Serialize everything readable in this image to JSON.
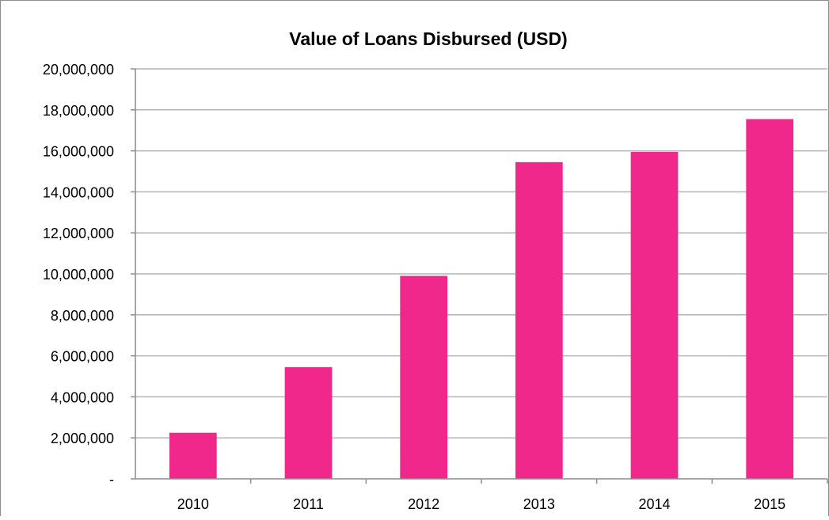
{
  "chart_data": {
    "type": "bar",
    "title": "Value of Loans Disbursed (USD)",
    "xlabel": "",
    "ylabel": "",
    "categories": [
      "2010",
      "2011",
      "2012",
      "2013",
      "2014",
      "2015"
    ],
    "values": [
      2250000,
      5450000,
      9900000,
      15450000,
      15950000,
      17550000
    ],
    "ylim": [
      0,
      20000000
    ],
    "yticks": [
      0,
      2000000,
      4000000,
      6000000,
      8000000,
      10000000,
      12000000,
      14000000,
      16000000,
      18000000,
      20000000
    ],
    "ytick_labels": [
      "-",
      "2,000,000",
      "4,000,000",
      "6,000,000",
      "8,000,000",
      "10,000,000",
      "12,000,000",
      "14,000,000",
      "16,000,000",
      "18,000,000",
      "20,000,000"
    ],
    "grid": true,
    "legend": "none",
    "colors": {
      "bar": "#f0288c",
      "grid": "#b3b3b3",
      "axis": "#8c8c8c",
      "text": "#000000"
    }
  }
}
